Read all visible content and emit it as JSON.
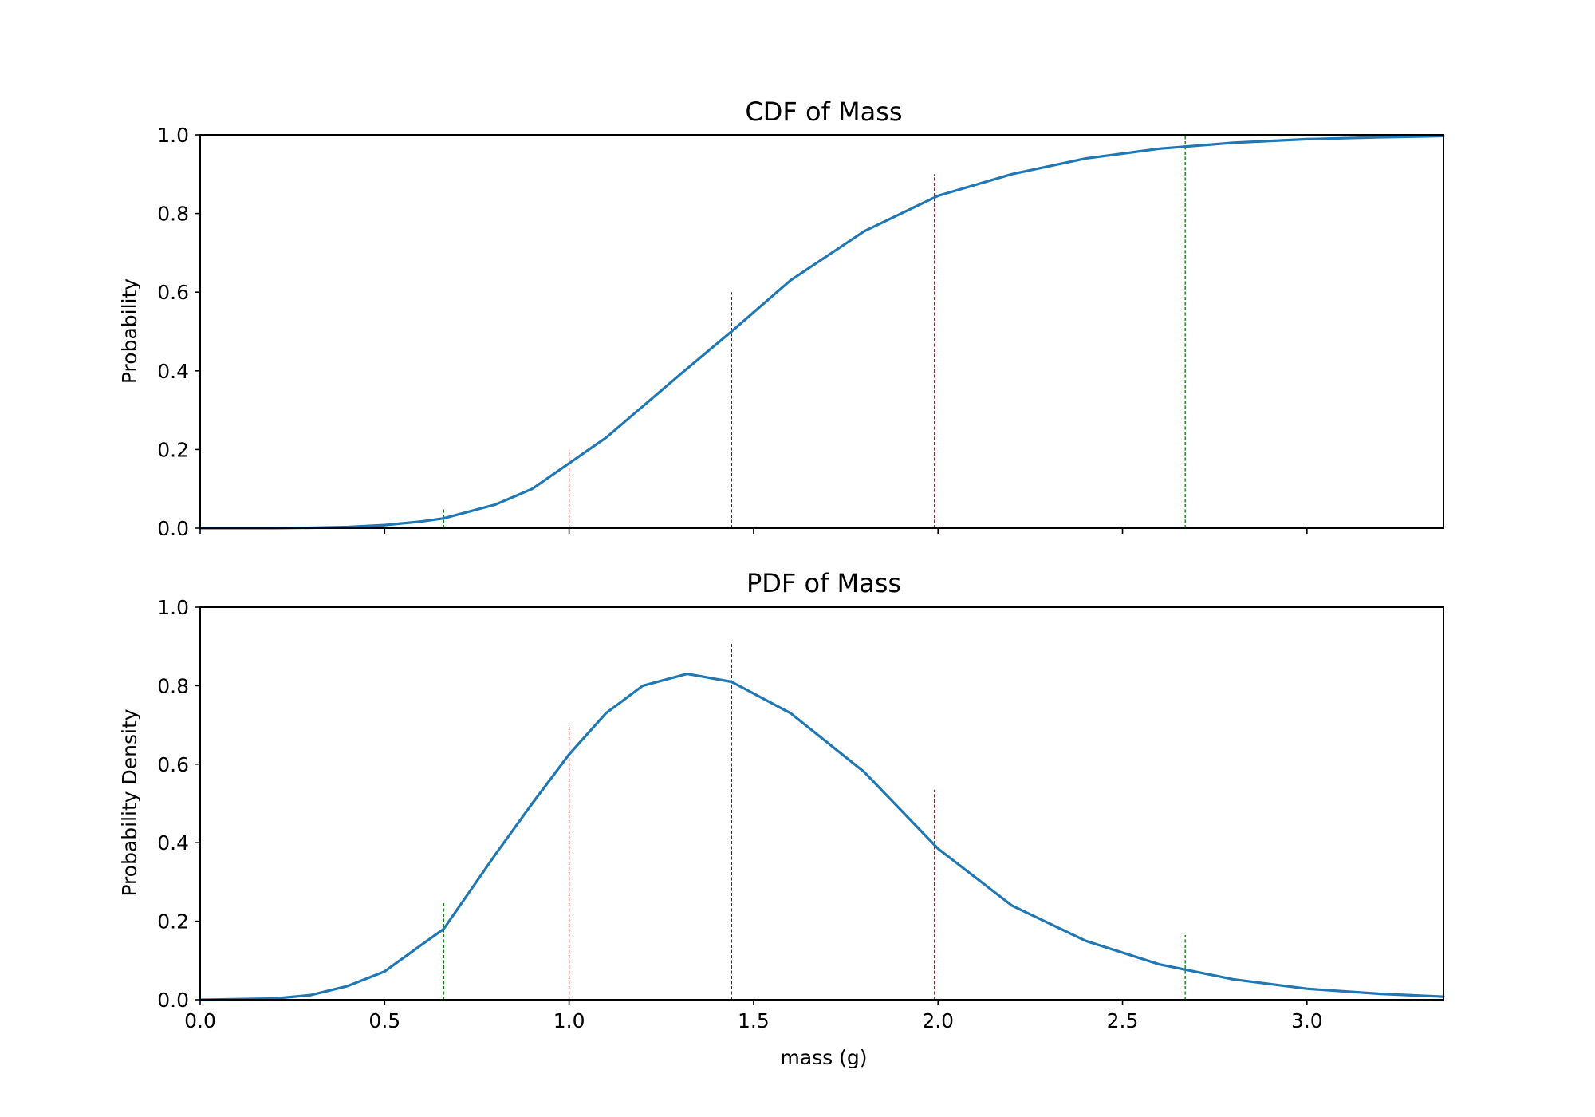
{
  "chart_data": [
    {
      "type": "line",
      "title": "CDF of Mass",
      "xlabel": "",
      "ylabel": "Probability",
      "xlim": [
        0.0,
        3.37
      ],
      "ylim": [
        0.0,
        1.0
      ],
      "xticks": [
        "0.0",
        "0.5",
        "1.0",
        "1.5",
        "2.0",
        "2.5",
        "3.0"
      ],
      "show_xtick_labels": false,
      "yticks": [
        "0.0",
        "0.2",
        "0.4",
        "0.6",
        "0.8",
        "1.0"
      ],
      "grid": false,
      "series": [
        {
          "color": "#1f77b4",
          "x": [
            0.0,
            0.2,
            0.3,
            0.4,
            0.5,
            0.6,
            0.66,
            0.8,
            0.9,
            1.0,
            1.1,
            1.2,
            1.3,
            1.44,
            1.6,
            1.8,
            2.0,
            2.2,
            2.4,
            2.6,
            2.8,
            3.0,
            3.2,
            3.37
          ],
          "y": [
            0.0,
            0.0,
            0.001,
            0.003,
            0.008,
            0.017,
            0.025,
            0.06,
            0.1,
            0.165,
            0.23,
            0.31,
            0.39,
            0.5,
            0.63,
            0.755,
            0.845,
            0.9,
            0.94,
            0.965,
            0.98,
            0.989,
            0.994,
            0.997
          ]
        }
      ],
      "vlines": [
        {
          "x": 0.66,
          "y": 0.05,
          "color": "#008000"
        },
        {
          "x": 1.0,
          "y": 0.2,
          "color": "#ff0000"
        },
        {
          "x": 1.44,
          "y": 0.6,
          "color": "#000000"
        },
        {
          "x": 1.99,
          "y": 0.9,
          "color": "#ff0000"
        },
        {
          "x": 2.67,
          "y": 1.0,
          "color": "#008000"
        }
      ]
    },
    {
      "type": "line",
      "title": "PDF of Mass",
      "xlabel": "mass (g)",
      "ylabel": "Probability Density",
      "xlim": [
        0.0,
        3.37
      ],
      "ylim": [
        0.0,
        1.0
      ],
      "xticks": [
        "0.0",
        "0.5",
        "1.0",
        "1.5",
        "2.0",
        "2.5",
        "3.0"
      ],
      "show_xtick_labels": true,
      "yticks": [
        "0.0",
        "0.2",
        "0.4",
        "0.6",
        "0.8",
        "1.0"
      ],
      "grid": false,
      "series": [
        {
          "color": "#1f77b4",
          "x": [
            0.0,
            0.2,
            0.3,
            0.4,
            0.5,
            0.6,
            0.66,
            0.8,
            0.9,
            1.0,
            1.1,
            1.2,
            1.32,
            1.44,
            1.6,
            1.8,
            2.0,
            2.2,
            2.4,
            2.6,
            2.8,
            3.0,
            3.2,
            3.37
          ],
          "y": [
            0.0,
            0.003,
            0.012,
            0.035,
            0.072,
            0.14,
            0.18,
            0.37,
            0.5,
            0.625,
            0.73,
            0.8,
            0.83,
            0.81,
            0.73,
            0.58,
            0.385,
            0.24,
            0.15,
            0.09,
            0.052,
            0.028,
            0.015,
            0.008
          ]
        }
      ],
      "vlines": [
        {
          "x": 0.66,
          "y": 0.25,
          "color": "#008000"
        },
        {
          "x": 1.0,
          "y": 0.7,
          "color": "#ff0000"
        },
        {
          "x": 1.44,
          "y": 0.91,
          "color": "#000000"
        },
        {
          "x": 1.99,
          "y": 0.535,
          "color": "#ff0000"
        },
        {
          "x": 2.67,
          "y": 0.165,
          "color": "#008000"
        }
      ]
    }
  ]
}
